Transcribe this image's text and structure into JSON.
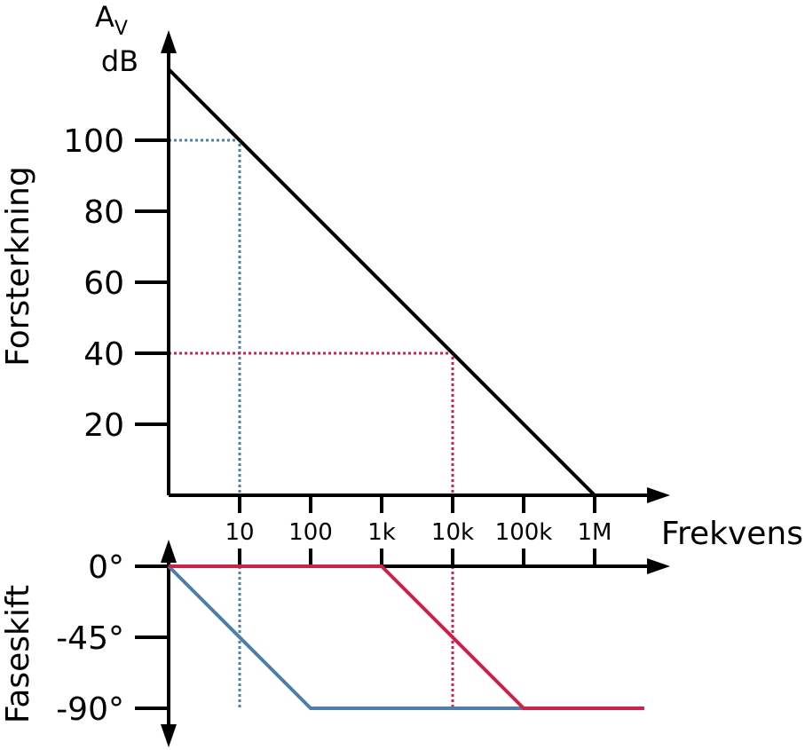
{
  "chart_data": [
    {
      "type": "line",
      "ylabel": "Forsterkning",
      "ylabel_unit_main": "A",
      "ylabel_unit_sub": "V",
      "ylabel_unit_line2": "dB",
      "xlabel": "Frekvens",
      "x_scale": "log",
      "x_ticks": [
        10,
        100,
        1000,
        10000,
        100000,
        1000000
      ],
      "x_tick_labels": [
        "10",
        "100",
        "1k",
        "10k",
        "100k",
        "1M"
      ],
      "y_ticks": [
        20,
        40,
        60,
        80,
        100
      ],
      "y_tick_labels": [
        "20",
        "40",
        "60",
        "80",
        "100"
      ],
      "ylim": [
        0,
        120
      ],
      "xlim": [
        1,
        10000000
      ],
      "grid": false,
      "series": [
        {
          "values": [
            [
              1,
              120
            ],
            [
              1000000,
              0
            ]
          ],
          "color": "#000000",
          "style": "solid"
        }
      ],
      "guides": [
        {
          "color": "#4a7fb0",
          "points": [
            [
              1,
              100
            ],
            [
              10,
              100
            ],
            [
              10,
              0
            ]
          ]
        },
        {
          "color": "#d0204a",
          "points": [
            [
              1,
              40
            ],
            [
              10000,
              40
            ],
            [
              10000,
              0
            ]
          ]
        }
      ]
    },
    {
      "type": "line",
      "ylabel": "Faseskift",
      "x_scale": "log",
      "y_ticks": [
        0,
        -45,
        -90
      ],
      "y_tick_labels": [
        "0°",
        "-45°",
        "-90°"
      ],
      "ylim": [
        -90,
        0
      ],
      "grid": false,
      "series": [
        {
          "values": [
            [
              1,
              0
            ],
            [
              100,
              -90
            ],
            [
              100000,
              -90
            ]
          ],
          "color": "#4a7fb0",
          "style": "solid"
        },
        {
          "values": [
            [
              1,
              0
            ],
            [
              1000,
              0
            ],
            [
              100000,
              -90
            ],
            [
              5000000,
              -90
            ]
          ],
          "color": "#d0204a",
          "style": "solid"
        }
      ],
      "guides": [
        {
          "color": "#4a7fb0",
          "points": [
            [
              10,
              0
            ],
            [
              10,
              -90
            ]
          ]
        },
        {
          "color": "#d0204a",
          "points": [
            [
              10000,
              0
            ],
            [
              10000,
              -90
            ]
          ]
        }
      ]
    }
  ]
}
